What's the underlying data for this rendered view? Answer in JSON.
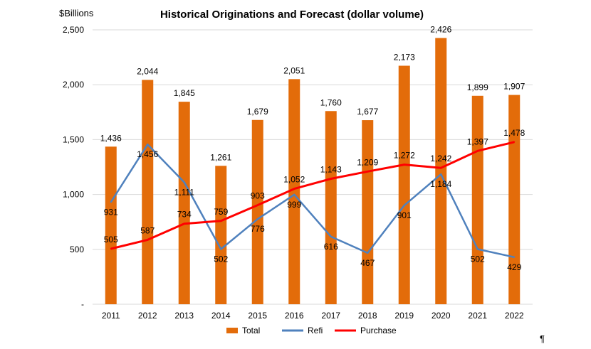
{
  "chart_data": {
    "type": "bar",
    "title": "Historical Originations and Forecast (dollar volume)",
    "unit_label": "$Billions",
    "categories": [
      "2011",
      "2012",
      "2013",
      "2014",
      "2015",
      "2016",
      "2017",
      "2018",
      "2019",
      "2020",
      "2021",
      "2022"
    ],
    "ylim": [
      0,
      2500
    ],
    "yticks": [
      {
        "value": 0,
        "label": "-"
      },
      {
        "value": 500,
        "label": "500"
      },
      {
        "value": 1000,
        "label": "1,000"
      },
      {
        "value": 1500,
        "label": "1,500"
      },
      {
        "value": 2000,
        "label": "2,000"
      },
      {
        "value": 2500,
        "label": "2,500"
      }
    ],
    "grid": true,
    "legend_position": "bottom",
    "series": [
      {
        "name": "Total",
        "type": "bar",
        "color": "#E36C0A",
        "values": [
          1436,
          2044,
          1845,
          1261,
          1679,
          2051,
          1760,
          1677,
          2173,
          2426,
          1899,
          1907
        ],
        "labels": [
          "1,436",
          "2,044",
          "1,845",
          "1,261",
          "1,679",
          "2,051",
          "1,760",
          "1,677",
          "2,173",
          "2,426",
          "1,899",
          "1,907"
        ]
      },
      {
        "name": "Refi",
        "type": "line",
        "color": "#4F81BD",
        "values": [
          931,
          1456,
          1111,
          502,
          776,
          999,
          616,
          467,
          901,
          1184,
          502,
          429
        ],
        "labels": [
          "931",
          "1,456",
          "1,111",
          "502",
          "776",
          "999",
          "616",
          "467",
          "901",
          "1,184",
          "502",
          "429"
        ]
      },
      {
        "name": "Purchase",
        "type": "line",
        "color": "#FF0000",
        "values": [
          505,
          587,
          734,
          759,
          903,
          1052,
          1143,
          1209,
          1272,
          1242,
          1397,
          1478
        ],
        "labels": [
          "505",
          "587",
          "734",
          "759",
          "903",
          "1,052",
          "1,143",
          "1,209",
          "1,272",
          "1,242",
          "1,397",
          "1,478"
        ]
      }
    ]
  },
  "decor": {
    "pilcrow": "¶"
  }
}
